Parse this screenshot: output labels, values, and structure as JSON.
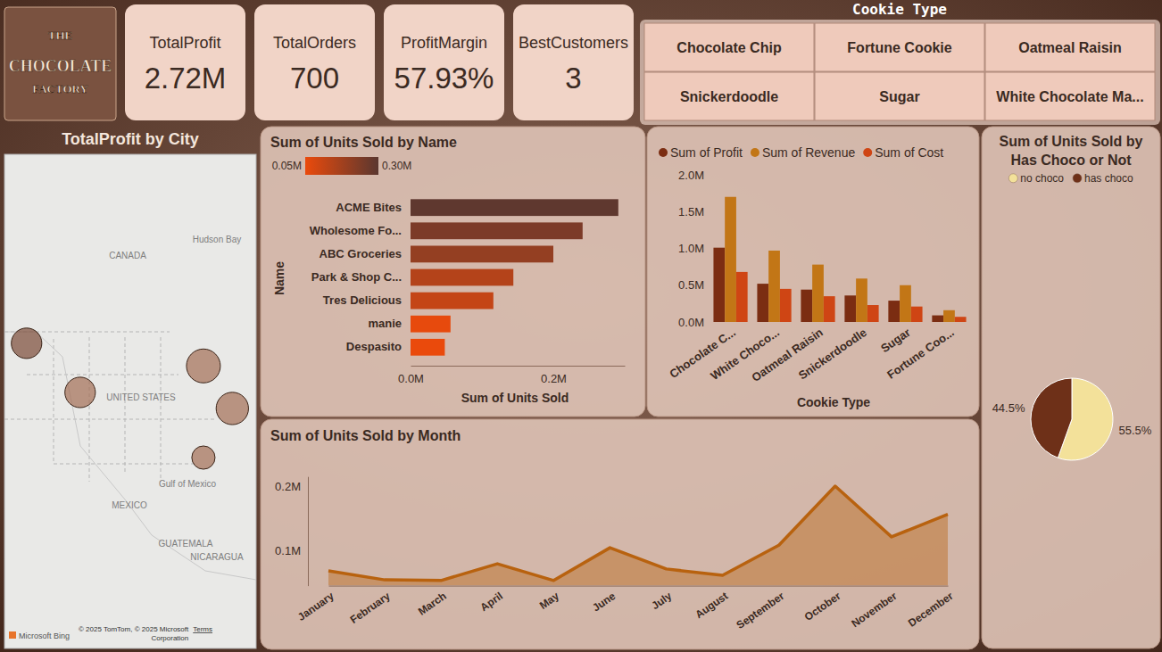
{
  "logo": [
    "THE",
    "CHOCOLATE",
    "FACTORY"
  ],
  "kpis": [
    {
      "label": "TotalProfit",
      "value": "2.72M"
    },
    {
      "label": "TotalOrders",
      "value": "700"
    },
    {
      "label": "ProfitMargin",
      "value": "57.93%"
    },
    {
      "label": "BestCustomers",
      "value": "3"
    }
  ],
  "slicer": {
    "title": "Cookie Type",
    "items": [
      "Chocolate Chip",
      "Fortune Cookie",
      "Oatmeal Raisin",
      "Snickerdoodle",
      "Sugar",
      "White Chocolate Ma..."
    ]
  },
  "chart_data": [
    {
      "type": "map",
      "title": "TotalProfit by City",
      "x": [
        -122.3,
        -109.7,
        -80.7,
        -73.9,
        -80.7
      ],
      "y": [
        47.6,
        42.4,
        45.2,
        40.7,
        35.5
      ],
      "size": [
        550000,
        550000,
        680000,
        620000,
        320000
      ],
      "xlim": [
        -127.5,
        -68.3
      ],
      "ylim": [
        15.3,
        67.6
      ],
      "tick_labels": false,
      "labels": [
        "CANADA",
        "Hudson Bay",
        "UNITED STATES",
        "Gulf of Mexico",
        "MEXICO",
        "GUATEMALA",
        "NICARAGUA"
      ],
      "attribution": [
        "Microsoft Bing",
        "© 2025 TomTom, © 2025 Microsoft",
        "Corporation",
        "Terms"
      ]
    },
    {
      "type": "bar",
      "orientation": "horizontal",
      "title": "Sum of Units Sold by Name",
      "x_label": "Sum of Units Sold",
      "y_label": "Name",
      "categories": [
        "ACME Bites",
        "Wholesome Fo...",
        "ABC Groceries",
        "Park & Shop C...",
        "Tres Delicious",
        "manie",
        "Despasito"
      ],
      "values": [
        0.291,
        0.241,
        0.2,
        0.144,
        0.116,
        0.056,
        0.048
      ],
      "xlim": [
        0,
        0.3
      ],
      "xticks": [
        {
          "value": 0,
          "label": "0.0M"
        },
        {
          "value": 0.2,
          "label": "0.2M"
        }
      ],
      "colorbar": {
        "range": [
          0.05,
          0.3
        ],
        "ticks": [
          {
            "value": 0.05,
            "label": "0.05M"
          },
          {
            "value": 0.3,
            "label": "0.30M"
          }
        ]
      }
    },
    {
      "type": "bar",
      "x_label": "Cookie Type",
      "categories": [
        "Chocolate C...",
        "White Choco...",
        "Oatmeal Raisin",
        "Snickerdoodle",
        "Sugar",
        "Fortune Coo..."
      ],
      "series": [
        {
          "name": "Sum of Profit",
          "color": "#7b2d12",
          "values": [
            1.01,
            0.52,
            0.44,
            0.36,
            0.29,
            0.09
          ]
        },
        {
          "name": "Sum of Revenue",
          "color": "#c27616",
          "values": [
            1.7,
            0.97,
            0.78,
            0.59,
            0.5,
            0.16
          ]
        },
        {
          "name": "Sum of Cost",
          "color": "#cf4514",
          "values": [
            0.68,
            0.45,
            0.35,
            0.23,
            0.21,
            0.07
          ]
        }
      ],
      "ylim": [
        0,
        2
      ],
      "yticks": [
        {
          "value": 0,
          "label": "0.0M"
        },
        {
          "value": 0.5,
          "label": "0.5M"
        },
        {
          "value": 1,
          "label": "1.0M"
        },
        {
          "value": 1.5,
          "label": "1.5M"
        },
        {
          "value": 2,
          "label": "2.0M"
        }
      ],
      "legend": "top"
    },
    {
      "type": "area",
      "title": "Sum of Units Sold by Month",
      "categories": [
        "January",
        "February",
        "March",
        "April",
        "May",
        "June",
        "July",
        "August",
        "September",
        "October",
        "November",
        "December"
      ],
      "values": [
        0.068,
        0.054,
        0.053,
        0.079,
        0.053,
        0.104,
        0.071,
        0.061,
        0.108,
        0.2,
        0.121,
        0.156
      ],
      "ylim": [
        0.045,
        0.215
      ],
      "yticks": [
        {
          "value": 0.1,
          "label": "0.1M"
        },
        {
          "value": 0.2,
          "label": "0.2M"
        }
      ],
      "color": "#b8620f"
    },
    {
      "type": "pie",
      "title": "Sum of Units Sold by Has Choco or Not",
      "categories": [
        "no choco",
        "has choco"
      ],
      "values": [
        55.5,
        44.5
      ],
      "value_labels": [
        "55.5%",
        "44.5%"
      ],
      "colors": [
        "#f3e19a",
        "#6e3018"
      ],
      "data_labels": true,
      "legend": "top"
    }
  ]
}
